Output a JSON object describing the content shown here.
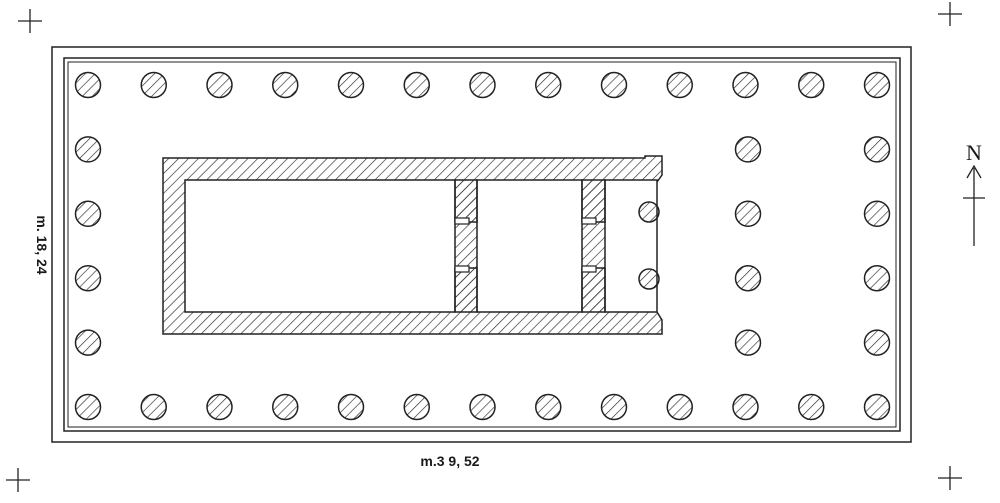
{
  "plan": {
    "length_label": "m.3 9, 52",
    "width_label": "m. 18, 24",
    "north_label": "N",
    "peristyle": {
      "long_side_columns": 13,
      "short_side_columns": 6
    },
    "pronaos_columns": 2,
    "ink_color": "#2a2a2a",
    "paper_color": "#ffffff"
  }
}
